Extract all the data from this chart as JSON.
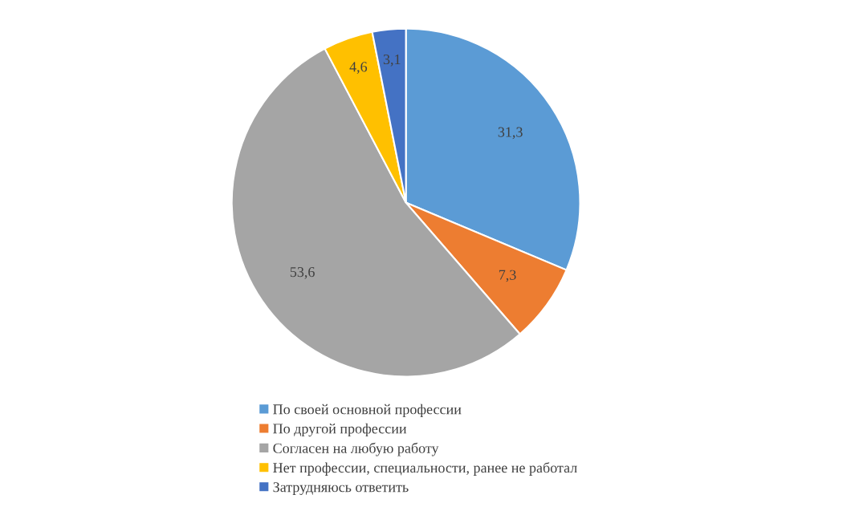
{
  "chart_data": {
    "type": "pie",
    "categories": [
      "По своей основной профессии",
      "По другой профессии",
      "Согласен на любую работу",
      "Нет профессии, специальности, ранее не работал",
      "Затрудняюсь ответить"
    ],
    "values": [
      31.3,
      7.3,
      53.6,
      4.6,
      3.1
    ],
    "value_labels": [
      "31,3",
      "7,3",
      "53,6",
      "4,6",
      "3,1"
    ],
    "colors": [
      "#5b9bd5",
      "#ed7d31",
      "#a5a5a5",
      "#ffc000",
      "#4472c4"
    ],
    "legend": "bottom"
  }
}
